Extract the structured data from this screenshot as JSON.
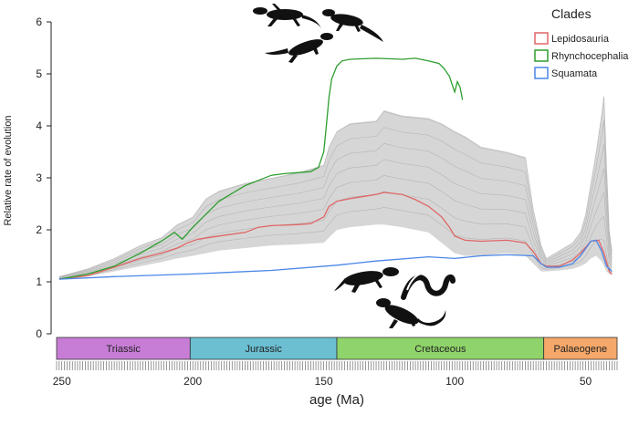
{
  "chart_data": {
    "type": "line",
    "xlabel": "age (Ma)",
    "ylabel": "Relative rate of evolution",
    "xlim": [
      252,
      38
    ],
    "ylim": [
      0,
      6
    ],
    "x_reversed": true,
    "x_ticks": [
      250,
      200,
      150,
      100,
      50
    ],
    "y_ticks": [
      0,
      1,
      2,
      3,
      4,
      5,
      6
    ],
    "grid": false,
    "legend": {
      "title": "Clades",
      "placement": "top-right",
      "entries": [
        {
          "name": "Lepidosauria",
          "color": "#e06666"
        },
        {
          "name": "Rhynchocephalia",
          "color": "#2e9e2e"
        },
        {
          "name": "Squamata",
          "color": "#4a86e8"
        }
      ]
    },
    "periods": [
      {
        "name": "Triassic",
        "start": 252,
        "end": 201,
        "color": "#c77dd6"
      },
      {
        "name": "Jurassic",
        "start": 201,
        "end": 145,
        "color": "#6bbfd1"
      },
      {
        "name": "Cretaceous",
        "start": 145,
        "end": 66,
        "color": "#8fd46a"
      },
      {
        "name": "Palaeogene",
        "start": 66,
        "end": 38,
        "color": "#f5a86a"
      }
    ],
    "series": [
      {
        "name": "Lepidosauria",
        "color": "#e06666",
        "x": [
          251,
          240,
          230,
          220,
          212,
          206,
          202,
          198,
          190,
          180,
          175,
          170,
          160,
          155,
          150,
          148,
          145,
          140,
          130,
          127,
          120,
          115,
          110,
          105,
          102,
          100,
          96,
          90,
          80,
          73,
          70,
          67,
          65,
          60,
          55,
          52,
          48,
          45,
          43,
          41,
          40
        ],
        "y": [
          1.05,
          1.12,
          1.28,
          1.45,
          1.55,
          1.65,
          1.75,
          1.82,
          1.88,
          1.95,
          2.05,
          2.08,
          2.1,
          2.12,
          2.25,
          2.45,
          2.55,
          2.6,
          2.68,
          2.72,
          2.68,
          2.58,
          2.45,
          2.25,
          2.05,
          1.88,
          1.8,
          1.78,
          1.8,
          1.75,
          1.58,
          1.35,
          1.3,
          1.3,
          1.42,
          1.55,
          1.78,
          1.8,
          1.55,
          1.2,
          1.15
        ]
      },
      {
        "name": "Rhynchocephalia",
        "color": "#2e9e2e",
        "x": [
          251,
          240,
          230,
          220,
          212,
          207,
          204,
          200,
          195,
          190,
          185,
          180,
          175,
          170,
          165,
          160,
          155,
          152,
          150,
          149,
          148,
          147,
          145,
          143,
          140,
          130,
          120,
          115,
          110,
          106,
          104,
          102,
          101,
          100,
          99,
          98,
          97
        ],
        "y": [
          1.05,
          1.15,
          1.3,
          1.55,
          1.78,
          1.95,
          1.82,
          2.05,
          2.3,
          2.55,
          2.7,
          2.85,
          2.95,
          3.05,
          3.08,
          3.1,
          3.12,
          3.2,
          3.5,
          4.0,
          4.55,
          4.9,
          5.15,
          5.25,
          5.28,
          5.3,
          5.28,
          5.3,
          5.25,
          5.2,
          5.1,
          4.95,
          4.8,
          4.65,
          4.85,
          4.75,
          4.5
        ]
      },
      {
        "name": "Squamata",
        "color": "#4a86e8",
        "x": [
          251,
          230,
          200,
          170,
          145,
          130,
          110,
          100,
          90,
          80,
          70,
          67,
          65,
          60,
          55,
          52,
          48,
          46,
          44,
          42,
          40
        ],
        "y": [
          1.05,
          1.1,
          1.15,
          1.22,
          1.32,
          1.4,
          1.48,
          1.45,
          1.5,
          1.52,
          1.5,
          1.35,
          1.28,
          1.28,
          1.35,
          1.5,
          1.78,
          1.8,
          1.6,
          1.3,
          1.2
        ]
      }
    ],
    "background_band": {
      "description_color": "#c8c8c8",
      "x": [
        251,
        240,
        230,
        220,
        212,
        206,
        200,
        195,
        190,
        180,
        170,
        160,
        150,
        148,
        145,
        140,
        130,
        127,
        120,
        110,
        105,
        100,
        96,
        90,
        80,
        73,
        70,
        67,
        65,
        60,
        55,
        52,
        50,
        48,
        46,
        44,
        43,
        42,
        41,
        40
      ],
      "low": [
        1.05,
        1.1,
        1.2,
        1.3,
        1.38,
        1.45,
        1.5,
        1.55,
        1.6,
        1.65,
        1.7,
        1.72,
        1.75,
        1.85,
        2.0,
        2.05,
        2.1,
        2.1,
        2.05,
        1.95,
        1.75,
        1.55,
        1.5,
        1.5,
        1.55,
        1.5,
        1.35,
        1.2,
        1.2,
        1.22,
        1.25,
        1.3,
        1.35,
        1.45,
        1.5,
        1.4,
        1.3,
        1.2,
        1.15,
        1.12
      ],
      "high": [
        1.1,
        1.25,
        1.45,
        1.7,
        1.85,
        2.1,
        2.25,
        2.6,
        2.75,
        2.9,
        3.0,
        3.1,
        3.25,
        3.6,
        3.9,
        4.05,
        4.1,
        4.3,
        4.2,
        4.15,
        4.05,
        3.9,
        3.8,
        3.6,
        3.5,
        3.4,
        2.4,
        1.7,
        1.45,
        1.6,
        1.75,
        1.95,
        2.3,
        2.9,
        3.5,
        4.2,
        4.6,
        3.2,
        2.0,
        1.6
      ]
    }
  }
}
